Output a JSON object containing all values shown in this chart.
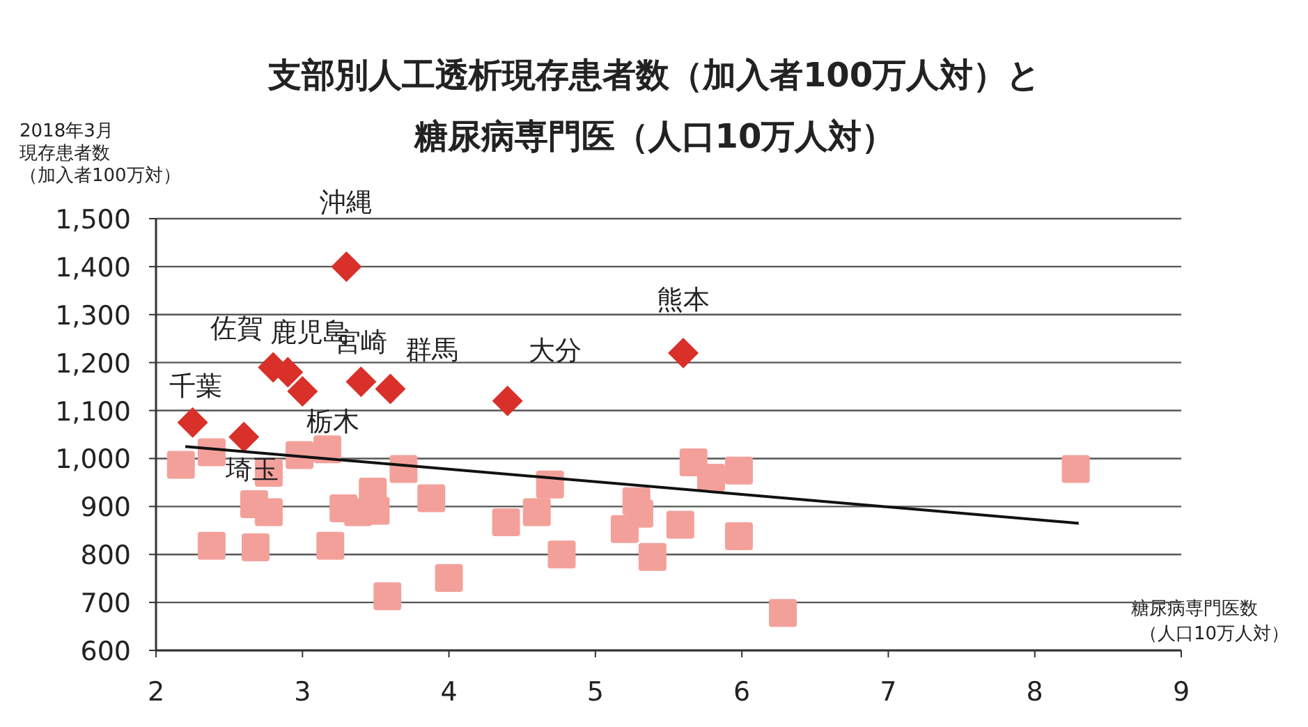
{
  "chart_data": {
    "type": "scatter",
    "title": "支部別人工透析現存患者数（加入者100万人対）と糖尿病専門医（人口10万人対）",
    "ylabel": "2018年3月現存患者数（加入者100万対）",
    "xlabel": "糖尿病専門医数（人口10万人対）",
    "xlim": [
      2,
      9
    ],
    "xticks": [
      2,
      3,
      4,
      5,
      6,
      7,
      8,
      9
    ],
    "ylim": [
      600,
      1500
    ],
    "yticks": [
      {
        "value": 600,
        "label": "600"
      },
      {
        "value": 700,
        "label": "700"
      },
      {
        "value": 800,
        "label": "800"
      },
      {
        "value": 900,
        "label": "900"
      },
      {
        "value": 1000,
        "label": "1,000"
      },
      {
        "value": 1100,
        "label": "1,100"
      },
      {
        "value": 1200,
        "label": "1,200"
      },
      {
        "value": 1300,
        "label": "1,300"
      },
      {
        "value": 1400,
        "label": "1,400"
      },
      {
        "value": 1500,
        "label": "1,500"
      }
    ],
    "grid": "y",
    "series": [
      {
        "marker": "square",
        "color": "#f4a09a",
        "x": [
          2.17,
          2.38,
          2.38,
          2.68,
          2.67,
          2.77,
          2.77,
          2.98,
          3.17,
          3.19,
          3.28,
          3.38,
          3.48,
          3.5,
          3.58,
          3.69,
          3.88,
          4.0,
          4.39,
          4.6,
          4.69,
          4.77,
          5.67,
          5.79,
          5.98,
          5.28,
          5.3,
          5.2,
          5.39,
          5.58,
          5.98,
          6.28,
          8.28
        ],
        "values": [
          987,
          1013,
          818,
          815,
          905,
          970,
          888,
          1007,
          1019,
          818,
          896,
          888,
          931,
          891,
          713,
          978,
          917,
          751,
          867,
          888,
          946,
          800,
          992,
          960,
          975,
          911,
          885,
          853,
          795,
          862,
          838,
          678,
          978
        ]
      },
      {
        "marker": "diamond",
        "color": "#d9302a",
        "x": [
          3.3,
          2.8,
          2.9,
          3.0,
          3.4,
          3.6,
          4.4,
          5.6,
          2.25,
          2.6
        ],
        "values": [
          1400,
          1190,
          1180,
          1140,
          1160,
          1145,
          1120,
          1220,
          1075,
          1045
        ]
      },
      {
        "type": "line",
        "marker": "none",
        "line_style": "solid",
        "color": "#111111",
        "x": [
          2.2,
          8.3
        ],
        "values": [
          1025,
          865
        ]
      }
    ],
    "annotations": [
      {
        "text": "沖縄",
        "x": 3.3,
        "y": 1400
      },
      {
        "text": "佐賀",
        "x": 2.8,
        "y": 1190
      },
      {
        "text": "鹿児島",
        "x": 2.9,
        "y": 1180
      },
      {
        "text": "栃木",
        "x": 3.0,
        "y": 1140
      },
      {
        "text": "宮崎",
        "x": 3.4,
        "y": 1160
      },
      {
        "text": "群馬",
        "x": 3.6,
        "y": 1145
      },
      {
        "text": "大分",
        "x": 4.4,
        "y": 1120
      },
      {
        "text": "熊本",
        "x": 5.6,
        "y": 1220
      },
      {
        "text": "千葉",
        "x": 2.25,
        "y": 1075
      },
      {
        "text": "埼玉",
        "x": 2.6,
        "y": 1045
      }
    ]
  }
}
